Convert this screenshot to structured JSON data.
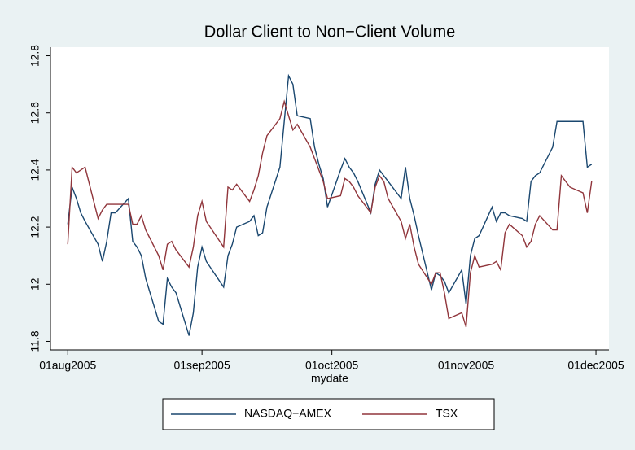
{
  "chart_data": {
    "type": "line",
    "title": "Dollar Client to Non−Client Volume",
    "x_label": "mydate",
    "x": [
      "2005-08-01",
      "2005-08-02",
      "2005-08-03",
      "2005-08-04",
      "2005-08-05",
      "2005-08-08",
      "2005-08-09",
      "2005-08-10",
      "2005-08-11",
      "2005-08-12",
      "2005-08-15",
      "2005-08-16",
      "2005-08-17",
      "2005-08-18",
      "2005-08-19",
      "2005-08-22",
      "2005-08-23",
      "2005-08-24",
      "2005-08-25",
      "2005-08-26",
      "2005-08-29",
      "2005-08-30",
      "2005-08-31",
      "2005-09-01",
      "2005-09-02",
      "2005-09-06",
      "2005-09-07",
      "2005-09-08",
      "2005-09-09",
      "2005-09-12",
      "2005-09-13",
      "2005-09-14",
      "2005-09-15",
      "2005-09-16",
      "2005-09-19",
      "2005-09-20",
      "2005-09-21",
      "2005-09-22",
      "2005-09-23",
      "2005-09-26",
      "2005-09-27",
      "2005-09-28",
      "2005-09-29",
      "2005-09-30",
      "2005-10-03",
      "2005-10-04",
      "2005-10-05",
      "2005-10-06",
      "2005-10-07",
      "2005-10-10",
      "2005-10-11",
      "2005-10-12",
      "2005-10-13",
      "2005-10-14",
      "2005-10-17",
      "2005-10-18",
      "2005-10-19",
      "2005-10-20",
      "2005-10-21",
      "2005-10-24",
      "2005-10-25",
      "2005-10-26",
      "2005-10-27",
      "2005-10-28",
      "2005-10-31",
      "2005-11-01",
      "2005-11-02",
      "2005-11-03",
      "2005-11-04",
      "2005-11-07",
      "2005-11-08",
      "2005-11-09",
      "2005-11-10",
      "2005-11-11",
      "2005-11-14",
      "2005-11-15",
      "2005-11-16",
      "2005-11-17",
      "2005-11-18",
      "2005-11-21",
      "2005-11-22",
      "2005-11-23",
      "2005-11-25",
      "2005-11-28",
      "2005-11-29",
      "2005-11-30"
    ],
    "series": [
      {
        "name": "NASDAQ−AMEX",
        "color": "#1a476f",
        "values": [
          12.21,
          12.34,
          12.3,
          12.25,
          12.22,
          12.14,
          12.08,
          12.15,
          12.25,
          12.25,
          12.3,
          12.15,
          12.13,
          12.1,
          12.02,
          11.87,
          11.86,
          12.02,
          11.99,
          11.97,
          11.82,
          11.9,
          12.06,
          12.13,
          12.08,
          11.99,
          12.1,
          12.14,
          12.2,
          12.22,
          12.24,
          12.17,
          12.18,
          12.27,
          12.41,
          12.57,
          12.73,
          12.7,
          12.59,
          12.58,
          12.48,
          12.42,
          12.37,
          12.27,
          12.4,
          12.44,
          12.41,
          12.39,
          12.36,
          12.25,
          12.35,
          12.4,
          12.38,
          12.36,
          12.3,
          12.41,
          12.3,
          12.24,
          12.17,
          11.98,
          12.04,
          12.03,
          12.01,
          11.97,
          12.05,
          11.93,
          12.1,
          12.16,
          12.17,
          12.27,
          12.22,
          12.25,
          12.25,
          12.24,
          12.23,
          12.22,
          12.36,
          12.38,
          12.39,
          12.48,
          12.57,
          12.57,
          12.57,
          12.57,
          12.41,
          12.42
        ]
      },
      {
        "name": "TSX",
        "color": "#90353b",
        "values": [
          12.14,
          12.41,
          12.39,
          12.4,
          12.41,
          12.23,
          12.26,
          12.28,
          12.28,
          12.28,
          12.28,
          12.21,
          12.21,
          12.24,
          12.19,
          12.1,
          12.05,
          12.14,
          12.15,
          12.12,
          12.06,
          12.13,
          12.24,
          12.29,
          12.22,
          12.13,
          12.34,
          12.33,
          12.35,
          12.29,
          12.33,
          12.38,
          12.46,
          12.52,
          12.58,
          12.64,
          12.59,
          12.54,
          12.56,
          12.48,
          12.44,
          12.4,
          12.36,
          12.3,
          12.31,
          12.37,
          12.36,
          12.34,
          12.31,
          12.25,
          12.34,
          12.38,
          12.36,
          12.3,
          12.22,
          12.16,
          12.21,
          12.13,
          12.07,
          12.0,
          12.04,
          12.04,
          11.97,
          11.88,
          11.9,
          11.85,
          12.04,
          12.1,
          12.06,
          12.07,
          12.08,
          12.05,
          12.18,
          12.21,
          12.17,
          12.13,
          12.15,
          12.21,
          12.24,
          12.19,
          12.19,
          12.38,
          12.34,
          12.32,
          12.25,
          12.36
        ]
      }
    ],
    "xlim": [
      "2005-07-28",
      "2005-12-04"
    ],
    "xticks": [
      {
        "value": "2005-08-01",
        "label": "01aug2005"
      },
      {
        "value": "2005-09-01",
        "label": "01sep2005"
      },
      {
        "value": "2005-10-01",
        "label": "01oct2005"
      },
      {
        "value": "2005-11-01",
        "label": "01nov2005"
      },
      {
        "value": "2005-12-01",
        "label": "01dec2005"
      }
    ],
    "ylim": [
      11.77,
      12.83
    ],
    "yticks": [
      11.8,
      12,
      12.2,
      12.4,
      12.6,
      12.8
    ],
    "grid": false,
    "legend": "bottom"
  }
}
